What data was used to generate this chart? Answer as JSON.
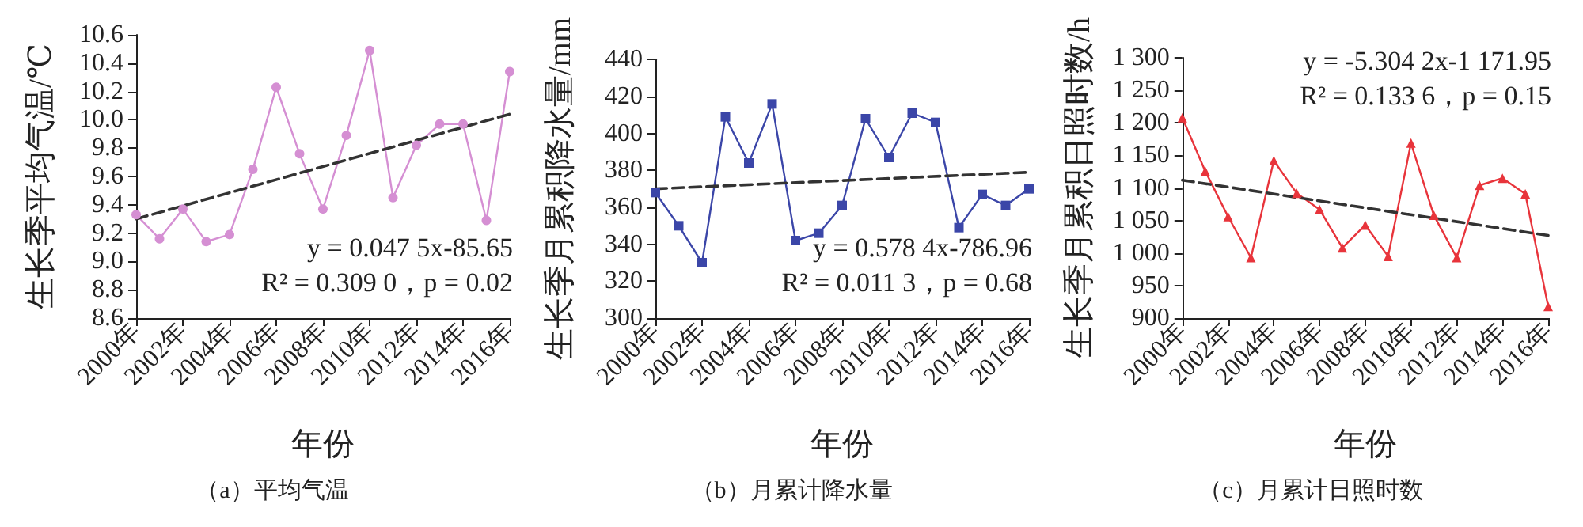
{
  "chart_data": [
    {
      "type": "line",
      "title": "（a）平均气温",
      "xlabel": "年份",
      "ylabel": "生长季平均气温/℃",
      "categories": [
        "2000年",
        null,
        "2002年",
        null,
        "2004年",
        null,
        "2006年",
        null,
        "2008年",
        null,
        "2010年",
        null,
        "2012年",
        null,
        "2014年",
        null,
        "2016年"
      ],
      "series": [
        {
          "color": "#d58fd3",
          "marker": "circle",
          "values": [
            9.33,
            9.16,
            9.37,
            9.14,
            9.19,
            9.65,
            10.23,
            9.76,
            9.37,
            9.89,
            10.49,
            9.45,
            9.82,
            9.97,
            9.97,
            9.29,
            10.34
          ]
        },
        {
          "type": "line",
          "color": "#333333",
          "marker": "none",
          "line_style": "dashed",
          "x": [
            "2000年",
            "2016年"
          ],
          "values": [
            9.3,
            10.04
          ]
        }
      ],
      "ylim": [
        8.6,
        10.6
      ],
      "yticks": [
        8.6,
        8.8,
        {
          "value": 9,
          "label": "9.0"
        },
        9.2,
        9.4,
        9.6,
        9.8,
        {
          "value": 10,
          "label": "10.0"
        },
        10.2,
        10.4,
        10.6
      ],
      "grid": false,
      "annotations": [
        "y = 0.047 5x-85.65",
        "R² = 0.309 0，p = 0.02"
      ]
    },
    {
      "type": "line",
      "title": "（b）月累计降水量",
      "xlabel": "年份",
      "ylabel": "生长季月累积降水量/mm",
      "categories": [
        "2000年",
        null,
        "2002年",
        null,
        "2004年",
        null,
        "2006年",
        null,
        "2008年",
        null,
        "2010年",
        null,
        "2012年",
        null,
        "2014年",
        null,
        "2016年"
      ],
      "series": [
        {
          "color": "#3b46a8",
          "marker": "square",
          "values": [
            368,
            350,
            330,
            409,
            384,
            416,
            342,
            346,
            361,
            408,
            387,
            411,
            406,
            349,
            367,
            361,
            370
          ]
        },
        {
          "type": "line",
          "color": "#333333",
          "marker": "none",
          "line_style": "dashed",
          "x": [
            "2000年",
            "2016年"
          ],
          "values": [
            370,
            379
          ]
        }
      ],
      "ylim": [
        300,
        440
      ],
      "yticks": [
        300,
        320,
        340,
        360,
        380,
        400,
        420,
        440
      ],
      "grid": false,
      "annotations": [
        "y = 0.578 4x-786.96",
        "R² = 0.011 3，p = 0.68"
      ]
    },
    {
      "type": "line",
      "title": "（c）月累计日照时数",
      "xlabel": "年份",
      "ylabel": "生长季月累积日照时数/h",
      "categories": [
        "2000年",
        null,
        "2002年",
        null,
        "2004年",
        null,
        "2006年",
        null,
        "2008年",
        null,
        "2010年",
        null,
        "2012年",
        null,
        "2014年",
        null,
        "2016年"
      ],
      "series": [
        {
          "color": "#e8343b",
          "marker": "triangle",
          "values": [
            1208,
            1126,
            1056,
            993,
            1142,
            1092,
            1067,
            1008,
            1043,
            995,
            1169,
            1058,
            993,
            1104,
            1115,
            1091,
            918
          ]
        },
        {
          "type": "line",
          "color": "#333333",
          "marker": "none",
          "line_style": "dashed",
          "x": [
            "2000年",
            "2016年"
          ],
          "values": [
            1112,
            1027
          ]
        }
      ],
      "ylim": [
        900,
        1300
      ],
      "yticks": [
        900,
        950,
        {
          "value": 1000,
          "label": "1 000"
        },
        {
          "value": 1050,
          "label": "1 050"
        },
        {
          "value": 1100,
          "label": "1 100"
        },
        {
          "value": 1150,
          "label": "1 150"
        },
        {
          "value": 1200,
          "label": "1 200"
        },
        {
          "value": 1250,
          "label": "1 250"
        },
        {
          "value": 1300,
          "label": "1 300"
        }
      ],
      "grid": false,
      "annotations": [
        "y = -5.304 2x-1 171.95",
        "R² = 0.133 6，p = 0.15"
      ]
    }
  ]
}
